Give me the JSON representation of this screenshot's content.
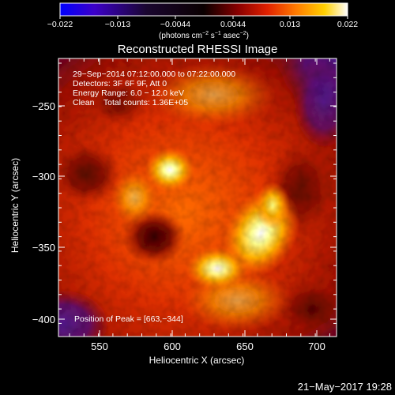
{
  "colorbar": {
    "ticks": [
      "−0.022",
      "−0.013",
      "−0.0044",
      "0.0044",
      "0.013",
      "0.022"
    ],
    "unit_parts": [
      "(photons cm",
      "−2",
      " s",
      "−1",
      " asec",
      "−2",
      ")"
    ],
    "colors": [
      "#0000ff",
      "#4a00b8",
      "#1a0630",
      "#0a0000",
      "#6a0000",
      "#b00000",
      "#e02000",
      "#ff5a00",
      "#ff9a00",
      "#ffd000",
      "#ffff80",
      "#ffffff"
    ]
  },
  "title": "Reconstructed RHESSI Image",
  "info": {
    "line1": "29−Sep−2014 07:12:00.000 to 07:22:00.000",
    "line2": "Detectors: 3F 6F 9F, Att 0",
    "line3": "Energy Range: 6.0 − 12.0 keV",
    "line4": "Clean    Total counts: 1.36E+05",
    "peak": "Position of Peak = [663,−344]"
  },
  "axes": {
    "xlabel": "Heliocentric X (arcsec)",
    "ylabel": "Heliocentric Y (arcsec)",
    "x_ticks": [
      "550",
      "600",
      "650",
      "700"
    ],
    "y_ticks": [
      "−250",
      "−300",
      "−350",
      "−400"
    ],
    "xlim": [
      522,
      713
    ],
    "ylim": [
      -412,
      -220
    ]
  },
  "footer": {
    "timestamp": "21−May−2017 19:28"
  }
}
